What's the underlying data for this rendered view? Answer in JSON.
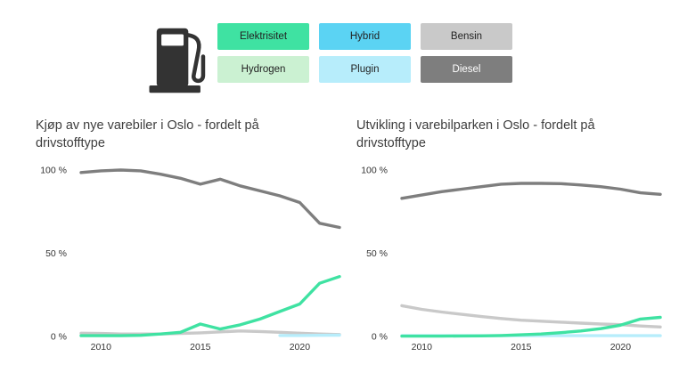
{
  "header": {
    "icon": "fuel-pump-icon",
    "legend": [
      {
        "label": "Elektrisitet",
        "color": "#3FE2A2",
        "text_color": "#222222"
      },
      {
        "label": "Hybrid",
        "color": "#5BD3F3",
        "text_color": "#222222"
      },
      {
        "label": "Bensin",
        "color": "#C9C9C9",
        "text_color": "#222222"
      },
      {
        "label": "Hydrogen",
        "color": "#CBF1D2",
        "text_color": "#222222"
      },
      {
        "label": "Plugin",
        "color": "#B7EDFB",
        "text_color": "#222222"
      },
      {
        "label": "Diesel",
        "color": "#7E7E7E",
        "text_color": "#FFFFFF"
      }
    ]
  },
  "chart_data": [
    {
      "type": "line",
      "title": "Kjøp av nye varebiler i Oslo - fordelt på drivstofftype",
      "xlabel": "",
      "ylabel": "",
      "xlim": [
        2009,
        2022
      ],
      "ylim": [
        0,
        100
      ],
      "grid": false,
      "legend_position": "shared-top",
      "x_ticks": [
        {
          "value": 2010,
          "label": "2010"
        },
        {
          "value": 2015,
          "label": "2015"
        },
        {
          "value": 2020,
          "label": "2020"
        }
      ],
      "y_ticks": [
        {
          "value": 0,
          "label": "0 %"
        },
        {
          "value": 50,
          "label": "50 %"
        },
        {
          "value": 100,
          "label": "100 %"
        }
      ],
      "series": [
        {
          "name": "Bensin",
          "color": "#C9C9C9",
          "x": [
            2009,
            2010,
            2011,
            2012,
            2013,
            2014,
            2015,
            2016,
            2017,
            2018,
            2019,
            2020,
            2021,
            2022
          ],
          "values": [
            2,
            1.8,
            1.5,
            1.5,
            1.5,
            1.8,
            2.2,
            2.8,
            3.3,
            3,
            2.5,
            2,
            1.5,
            1.2
          ]
        },
        {
          "name": "Plugin",
          "color": "#B7EDFB",
          "x": [
            2019,
            2020,
            2021,
            2022
          ],
          "values": [
            0.6,
            0.6,
            0.7,
            0.8
          ]
        },
        {
          "name": "Elektrisitet",
          "color": "#3FE2A2",
          "x": [
            2009,
            2010,
            2011,
            2012,
            2013,
            2014,
            2015,
            2016,
            2017,
            2018,
            2019,
            2020,
            2021,
            2022
          ],
          "values": [
            0.5,
            0.5,
            0.5,
            0.7,
            1.5,
            2.5,
            7.5,
            4.5,
            7,
            10.5,
            15,
            19.5,
            32,
            36
          ]
        },
        {
          "name": "Diesel",
          "color": "#7E7E7E",
          "x": [
            2009,
            2010,
            2011,
            2012,
            2013,
            2014,
            2015,
            2016,
            2017,
            2018,
            2019,
            2020,
            2021,
            2022
          ],
          "values": [
            98.5,
            99.5,
            100,
            99.5,
            97.5,
            95,
            91.5,
            94.5,
            90.5,
            87.5,
            84.5,
            80.5,
            68,
            65.5
          ]
        }
      ]
    },
    {
      "type": "line",
      "title": "Utvikling i varebilparken i Oslo - fordelt på drivstofftype",
      "xlabel": "",
      "ylabel": "",
      "xlim": [
        2009,
        2022
      ],
      "ylim": [
        0,
        100
      ],
      "grid": false,
      "legend_position": "shared-top",
      "x_ticks": [
        {
          "value": 2010,
          "label": "2010"
        },
        {
          "value": 2015,
          "label": "2015"
        },
        {
          "value": 2020,
          "label": "2020"
        }
      ],
      "y_ticks": [
        {
          "value": 0,
          "label": "0 %"
        },
        {
          "value": 50,
          "label": "50 %"
        },
        {
          "value": 100,
          "label": "100 %"
        }
      ],
      "series": [
        {
          "name": "Bensin",
          "color": "#C9C9C9",
          "x": [
            2009,
            2010,
            2011,
            2012,
            2013,
            2014,
            2015,
            2016,
            2017,
            2018,
            2019,
            2020,
            2021,
            2022
          ],
          "values": [
            18.5,
            16.3,
            14.7,
            13.3,
            12,
            10.8,
            9.8,
            9.2,
            8.6,
            8,
            7.5,
            7.1,
            6.3,
            5.7
          ]
        },
        {
          "name": "Plugin",
          "color": "#B7EDFB",
          "x": [
            2009,
            2010,
            2011,
            2012,
            2013,
            2014,
            2015,
            2016,
            2017,
            2018,
            2019,
            2020,
            2021,
            2022
          ],
          "values": [
            0.5,
            0.5,
            0.5,
            0.5,
            0.5,
            0.5,
            0.5,
            0.5,
            0.5,
            0.5,
            0.5,
            0.5,
            0.5,
            0.5
          ]
        },
        {
          "name": "Elektrisitet",
          "color": "#3FE2A2",
          "x": [
            2009,
            2010,
            2011,
            2012,
            2013,
            2014,
            2015,
            2016,
            2017,
            2018,
            2019,
            2020,
            2021,
            2022
          ],
          "values": [
            0.2,
            0.2,
            0.2,
            0.3,
            0.4,
            0.6,
            1,
            1.5,
            2.3,
            3.3,
            4.7,
            6.8,
            10.5,
            11.5
          ]
        },
        {
          "name": "Diesel",
          "color": "#7E7E7E",
          "x": [
            2009,
            2010,
            2011,
            2012,
            2013,
            2014,
            2015,
            2016,
            2017,
            2018,
            2019,
            2020,
            2021,
            2022
          ],
          "values": [
            83,
            85,
            87,
            88.5,
            90,
            91.5,
            92,
            92,
            91.8,
            91,
            90,
            88.5,
            86.3,
            85.4
          ]
        }
      ]
    }
  ]
}
